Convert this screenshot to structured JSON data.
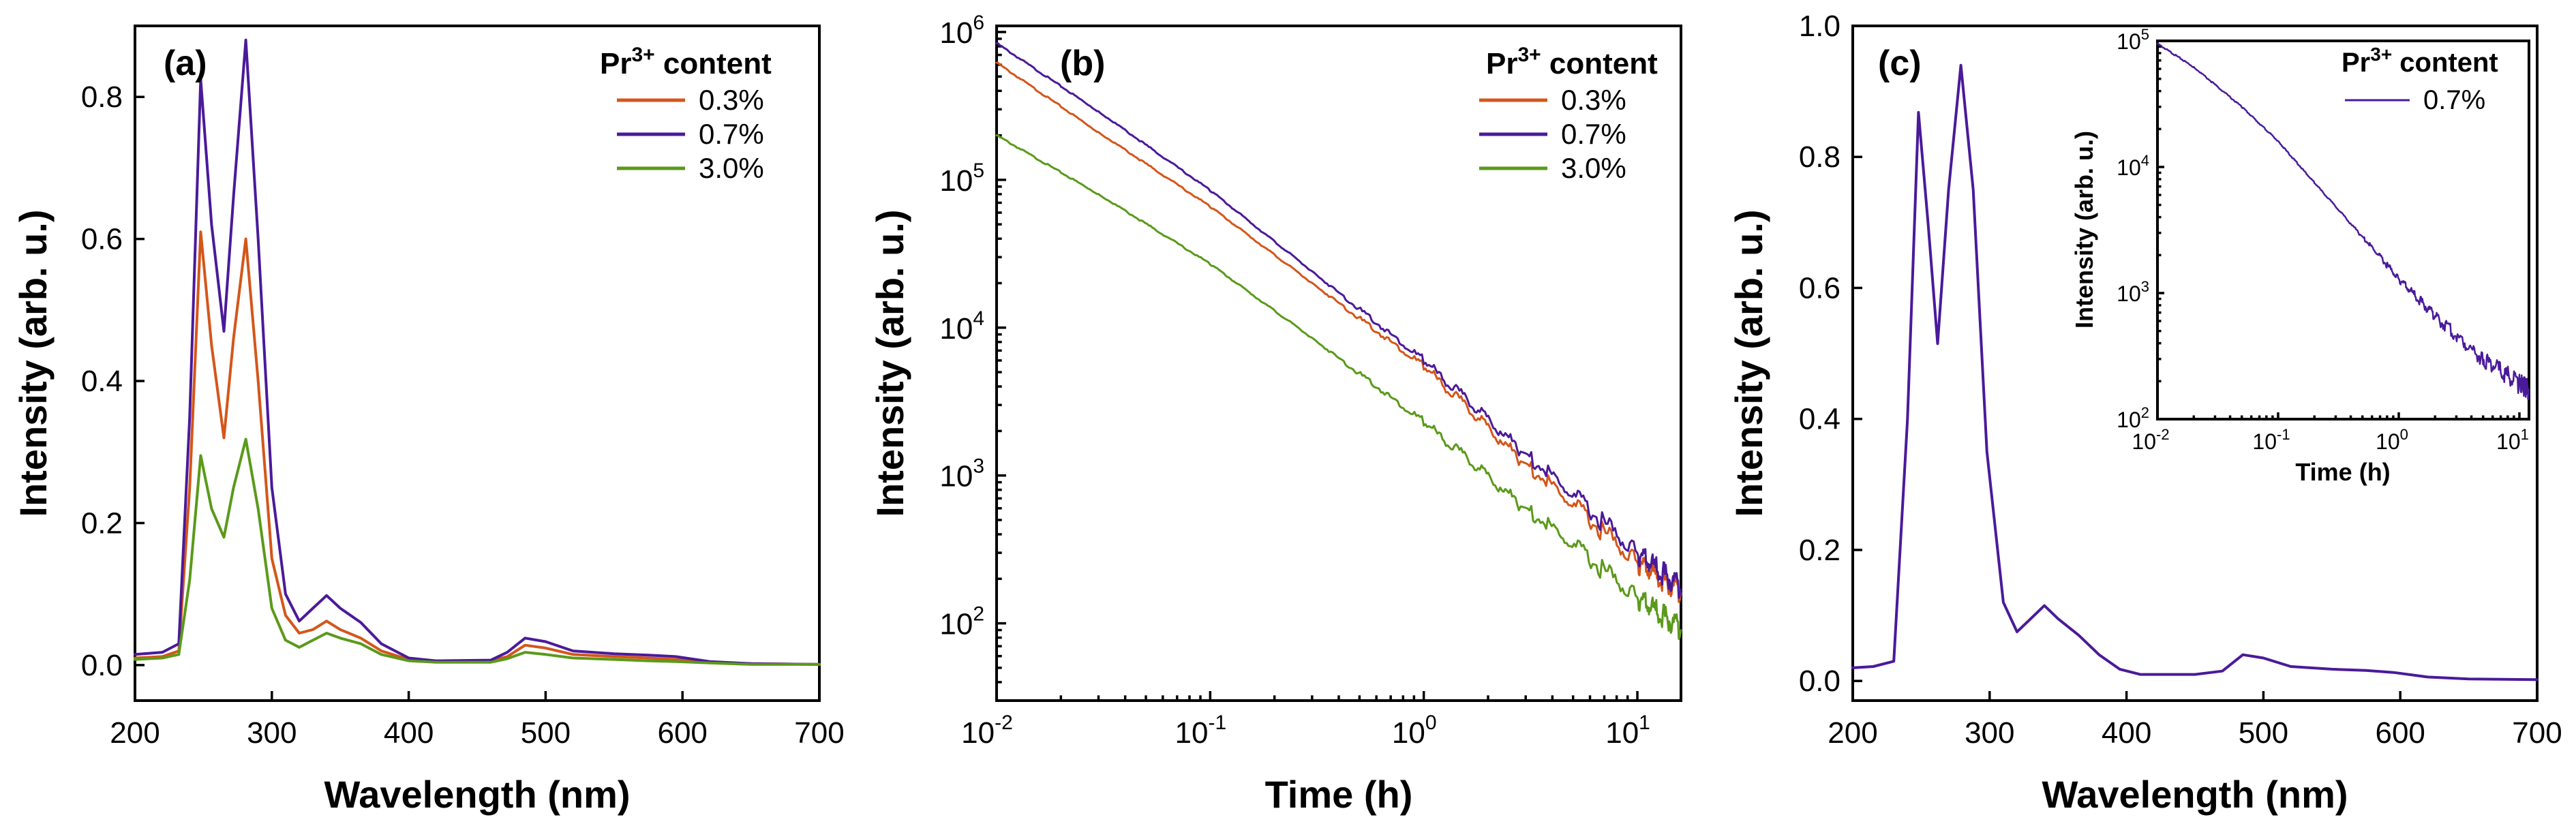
{
  "colors": {
    "c03": "#d4561a",
    "c07": "#4a1a9a",
    "c30": "#5a9a1a"
  },
  "chart_data": [
    {
      "id": "a",
      "type": "line",
      "panel_label": "(a)",
      "xlabel": "Wavelength (nm)",
      "ylabel": "Intensity (arb. u.)",
      "xlim": [
        200,
        700
      ],
      "ylim": [
        -0.05,
        0.9
      ],
      "xticks": [
        200,
        300,
        400,
        500,
        600,
        700
      ],
      "xtick_labels": [
        "200",
        "300",
        "400",
        "500",
        "600",
        "700"
      ],
      "yticks": [
        0.0,
        0.2,
        0.4,
        0.6,
        0.8
      ],
      "ytick_labels": [
        "0.0",
        "0.2",
        "0.4",
        "0.6",
        "0.8"
      ],
      "legend": {
        "title_main": "Pr",
        "title_sup": "3+",
        "title_rest": " content",
        "position": "top-right"
      },
      "series": [
        {
          "name": "0.3%",
          "color_key": "c03",
          "points": [
            [
              200,
              0.01
            ],
            [
              220,
              0.012
            ],
            [
              232,
              0.02
            ],
            [
              240,
              0.25
            ],
            [
              248,
              0.61
            ],
            [
              256,
              0.45
            ],
            [
              265,
              0.32
            ],
            [
              272,
              0.46
            ],
            [
              281,
              0.6
            ],
            [
              290,
              0.4
            ],
            [
              300,
              0.15
            ],
            [
              310,
              0.07
            ],
            [
              320,
              0.045
            ],
            [
              330,
              0.05
            ],
            [
              340,
              0.062
            ],
            [
              350,
              0.05
            ],
            [
              365,
              0.038
            ],
            [
              380,
              0.02
            ],
            [
              400,
              0.008
            ],
            [
              420,
              0.005
            ],
            [
              460,
              0.006
            ],
            [
              472,
              0.012
            ],
            [
              485,
              0.028
            ],
            [
              500,
              0.024
            ],
            [
              520,
              0.015
            ],
            [
              550,
              0.012
            ],
            [
              575,
              0.01
            ],
            [
              595,
              0.008
            ],
            [
              620,
              0.004
            ],
            [
              650,
              0.002
            ],
            [
              700,
              0.001
            ]
          ]
        },
        {
          "name": "0.7%",
          "color_key": "c07",
          "points": [
            [
              200,
              0.015
            ],
            [
              220,
              0.018
            ],
            [
              232,
              0.03
            ],
            [
              240,
              0.35
            ],
            [
              248,
              0.825
            ],
            [
              256,
              0.62
            ],
            [
              265,
              0.47
            ],
            [
              272,
              0.66
            ],
            [
              281,
              0.88
            ],
            [
              290,
              0.6
            ],
            [
              300,
              0.25
            ],
            [
              310,
              0.1
            ],
            [
              320,
              0.062
            ],
            [
              330,
              0.08
            ],
            [
              340,
              0.098
            ],
            [
              350,
              0.08
            ],
            [
              365,
              0.06
            ],
            [
              380,
              0.03
            ],
            [
              400,
              0.01
            ],
            [
              420,
              0.006
            ],
            [
              460,
              0.007
            ],
            [
              472,
              0.018
            ],
            [
              485,
              0.038
            ],
            [
              500,
              0.033
            ],
            [
              520,
              0.02
            ],
            [
              550,
              0.016
            ],
            [
              575,
              0.014
            ],
            [
              595,
              0.012
            ],
            [
              620,
              0.005
            ],
            [
              650,
              0.002
            ],
            [
              700,
              0.001
            ]
          ]
        },
        {
          "name": "3.0%",
          "color_key": "c30",
          "points": [
            [
              200,
              0.008
            ],
            [
              220,
              0.01
            ],
            [
              232,
              0.015
            ],
            [
              240,
              0.12
            ],
            [
              248,
              0.295
            ],
            [
              256,
              0.22
            ],
            [
              265,
              0.18
            ],
            [
              272,
              0.25
            ],
            [
              281,
              0.318
            ],
            [
              290,
              0.22
            ],
            [
              300,
              0.08
            ],
            [
              310,
              0.035
            ],
            [
              320,
              0.025
            ],
            [
              330,
              0.035
            ],
            [
              340,
              0.045
            ],
            [
              350,
              0.038
            ],
            [
              365,
              0.03
            ],
            [
              380,
              0.015
            ],
            [
              400,
              0.006
            ],
            [
              420,
              0.004
            ],
            [
              460,
              0.004
            ],
            [
              472,
              0.009
            ],
            [
              485,
              0.018
            ],
            [
              500,
              0.015
            ],
            [
              520,
              0.01
            ],
            [
              550,
              0.008
            ],
            [
              575,
              0.006
            ],
            [
              595,
              0.005
            ],
            [
              620,
              0.003
            ],
            [
              650,
              0.001
            ],
            [
              700,
              0.001
            ]
          ]
        }
      ]
    },
    {
      "id": "b",
      "type": "line",
      "panel_label": "(b)",
      "xscale": "log",
      "yscale": "log",
      "xlabel": "Time (h)",
      "ylabel": "Intensity (arb. u.)",
      "xlim": [
        0.01,
        16
      ],
      "ylim": [
        30,
        1100000
      ],
      "x_decades": [
        {
          "base": "10",
          "exp": "-2"
        },
        {
          "base": "10",
          "exp": "-1"
        },
        {
          "base": "10",
          "exp": "0"
        },
        {
          "base": "10",
          "exp": "1"
        }
      ],
      "y_decades": [
        {
          "base": "10",
          "exp": "2"
        },
        {
          "base": "10",
          "exp": "3"
        },
        {
          "base": "10",
          "exp": "4"
        },
        {
          "base": "10",
          "exp": "5"
        },
        {
          "base": "10",
          "exp": "6"
        }
      ],
      "legend": {
        "title_main": "Pr",
        "title_sup": "3+",
        "title_rest": " content",
        "position": "top-right"
      },
      "series": [
        {
          "name": "0.3%",
          "color_key": "c03",
          "points": [
            [
              0.01,
              620000
            ],
            [
              0.03,
              210000
            ],
            [
              0.1,
              66000
            ],
            [
              0.3,
              20000
            ],
            [
              1,
              5500
            ],
            [
              3,
              1200
            ],
            [
              10,
              260
            ],
            [
              16,
              160
            ]
          ]
        },
        {
          "name": "0.7%",
          "color_key": "c07",
          "points": [
            [
              0.01,
              840000
            ],
            [
              0.03,
              290000
            ],
            [
              0.1,
              85000
            ],
            [
              0.3,
              24000
            ],
            [
              1,
              6000
            ],
            [
              3,
              1400
            ],
            [
              10,
              300
            ],
            [
              16,
              170
            ]
          ]
        },
        {
          "name": "3.0%",
          "color_key": "c30",
          "points": [
            [
              0.01,
              200000
            ],
            [
              0.03,
              80000
            ],
            [
              0.1,
              27000
            ],
            [
              0.3,
              8500
            ],
            [
              1,
              2300
            ],
            [
              3,
              600
            ],
            [
              10,
              150
            ],
            [
              16,
              90
            ]
          ]
        }
      ]
    },
    {
      "id": "c",
      "type": "line",
      "panel_label": "(c)",
      "xlabel": "Wavelength (nm)",
      "ylabel": "Intensity (arb. u.)",
      "xlim": [
        200,
        700
      ],
      "ylim": [
        -0.03,
        1.0
      ],
      "xticks": [
        200,
        300,
        400,
        500,
        600,
        700
      ],
      "xtick_labels": [
        "200",
        "300",
        "400",
        "500",
        "600",
        "700"
      ],
      "yticks": [
        0.0,
        0.2,
        0.4,
        0.6,
        0.8,
        1.0
      ],
      "ytick_labels": [
        "0.0",
        "0.2",
        "0.4",
        "0.6",
        "0.8",
        "1.0"
      ],
      "series": [
        {
          "name": "0.7%",
          "color_key": "c07",
          "points": [
            [
              200,
              0.02
            ],
            [
              215,
              0.022
            ],
            [
              230,
              0.03
            ],
            [
              240,
              0.4
            ],
            [
              248,
              0.868
            ],
            [
              255,
              0.7
            ],
            [
              262,
              0.515
            ],
            [
              270,
              0.75
            ],
            [
              279,
              0.94
            ],
            [
              288,
              0.75
            ],
            [
              298,
              0.35
            ],
            [
              310,
              0.12
            ],
            [
              320,
              0.075
            ],
            [
              330,
              0.095
            ],
            [
              340,
              0.115
            ],
            [
              350,
              0.095
            ],
            [
              365,
              0.07
            ],
            [
              380,
              0.04
            ],
            [
              395,
              0.018
            ],
            [
              410,
              0.01
            ],
            [
              450,
              0.01
            ],
            [
              470,
              0.015
            ],
            [
              485,
              0.04
            ],
            [
              500,
              0.035
            ],
            [
              520,
              0.022
            ],
            [
              550,
              0.018
            ],
            [
              575,
              0.016
            ],
            [
              595,
              0.013
            ],
            [
              620,
              0.006
            ],
            [
              650,
              0.003
            ],
            [
              700,
              0.002
            ]
          ]
        }
      ],
      "inset": {
        "type": "line",
        "xscale": "log",
        "yscale": "log",
        "xlabel": "Time (h)",
        "ylabel": "Intensity (arb. u.)",
        "xlim": [
          0.01,
          12
        ],
        "ylim": [
          100,
          100000
        ],
        "x_decades": [
          {
            "base": "10",
            "exp": "-2"
          },
          {
            "base": "10",
            "exp": "-1"
          },
          {
            "base": "10",
            "exp": "0"
          },
          {
            "base": "10",
            "exp": "1"
          }
        ],
        "y_decades": [
          {
            "base": "10",
            "exp": "2"
          },
          {
            "base": "10",
            "exp": "3"
          },
          {
            "base": "10",
            "exp": "4"
          },
          {
            "base": "10",
            "exp": "5"
          }
        ],
        "legend": {
          "title_main": "Pr",
          "title_sup": "3+",
          "title_rest": " content",
          "position": "top-right"
        },
        "series": [
          {
            "name": "0.7%",
            "color_key": "c07",
            "points": [
              [
                0.01,
                95000
              ],
              [
                0.02,
                62000
              ],
              [
                0.05,
                30000
              ],
              [
                0.1,
                16000
              ],
              [
                0.2,
                7500
              ],
              [
                0.5,
                2800
              ],
              [
                1,
                1300
              ],
              [
                2,
                650
              ],
              [
                5,
                300
              ],
              [
                10,
                190
              ],
              [
                12,
                170
              ]
            ]
          }
        ]
      }
    }
  ]
}
